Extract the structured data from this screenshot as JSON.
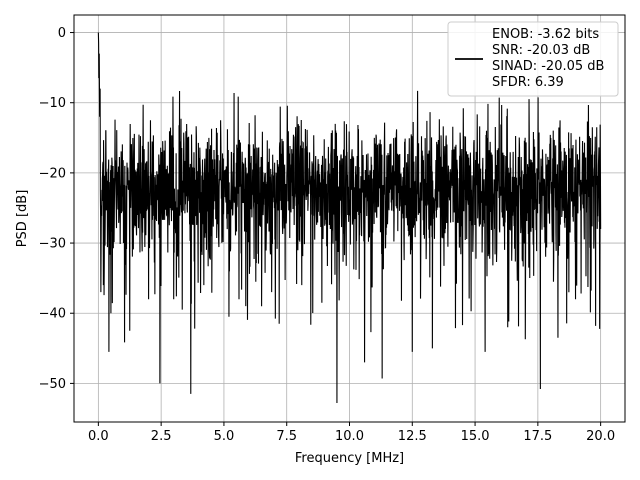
{
  "chart_data": {
    "type": "line",
    "title": "",
    "xlabel": "Frequency [MHz]",
    "ylabel": "PSD [dB]",
    "xlim": [
      -0.97,
      20.97
    ],
    "ylim": [
      -55.5,
      2.5
    ],
    "xticks": [
      0.0,
      2.5,
      5.0,
      7.5,
      10.0,
      12.5,
      15.0,
      17.5,
      20.0
    ],
    "xtick_labels": [
      "0.0",
      "2.5",
      "5.0",
      "7.5",
      "10.0",
      "12.5",
      "15.0",
      "17.5",
      "20.0"
    ],
    "yticks": [
      0,
      -10,
      -20,
      -30,
      -40,
      -50
    ],
    "ytick_labels": [
      "0",
      "−10",
      "−20",
      "−30",
      "−40",
      "−50"
    ],
    "grid": true,
    "legend_position": "top-right",
    "series_color": "#000000",
    "legend_entries": [
      "ENOB: -3.62 bits",
      "SNR: -20.03 dB",
      "SINAD: -20.05 dB",
      "SFDR: 6.39"
    ],
    "series": [
      {
        "x": [
          0.0,
          0.02,
          0.05,
          0.1,
          0.15,
          0.2,
          0.3,
          0.42,
          0.5,
          1.0,
          1.25,
          2.0,
          2.45,
          3.0,
          3.68,
          4.2,
          5.2,
          5.6,
          6.5,
          6.9,
          7.2,
          8.1,
          8.9,
          9.5,
          10.6,
          11.3,
          12.5,
          13.3,
          14.5,
          15.4,
          16.3,
          17.0,
          17.6,
          18.3,
          19.0,
          19.8,
          20.0
        ],
        "y": [
          0.0,
          -6.5,
          -12.0,
          -37.0,
          -24.0,
          -36.0,
          -14.0,
          -45.5,
          -40.0,
          -30.0,
          -42.5,
          -38.0,
          -50.0,
          -38.0,
          -51.5,
          -36.0,
          -40.5,
          -38.0,
          -39.0,
          -37.0,
          -41.5,
          -36.0,
          -38.5,
          -52.8,
          -47.0,
          -49.3,
          -45.5,
          -45.0,
          -41.7,
          -45.5,
          -42.0,
          -43.7,
          -50.8,
          -43.5,
          -38.0,
          -41.8,
          -28.0
        ]
      }
    ]
  }
}
